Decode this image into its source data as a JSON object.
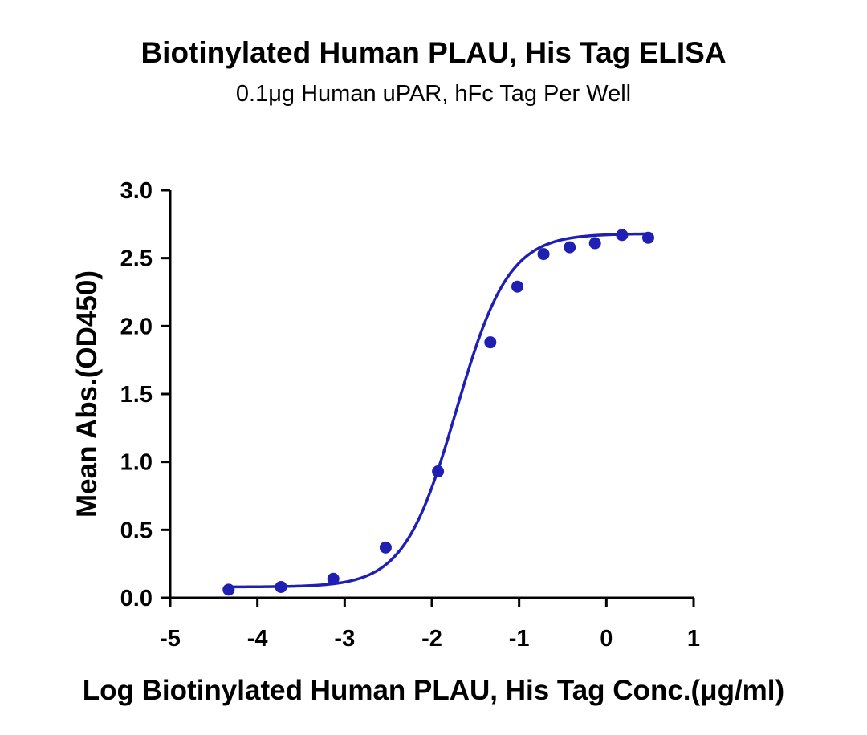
{
  "chart_data": {
    "type": "scatter",
    "title": "Biotinylated Human PLAU, His Tag ELISA",
    "subtitle": "0.1μg Human uPAR, hFc Tag Per Well",
    "xlabel": "Log Biotinylated Human PLAU, His Tag Conc.(μg/ml)",
    "ylabel": "Mean Abs.(OD450)",
    "xlim": [
      -5,
      1
    ],
    "ylim": [
      0,
      3
    ],
    "x_ticks": [
      -5,
      -4,
      -3,
      -2,
      -1,
      0,
      1
    ],
    "x_tick_labels": [
      "-5",
      "-4",
      "-3",
      "-2",
      "-1",
      "0",
      "1"
    ],
    "y_ticks": [
      0,
      0.5,
      1,
      1.5,
      2,
      2.5,
      3
    ],
    "y_tick_labels": [
      "0.0",
      "0.5",
      "1.0",
      "1.5",
      "2.0",
      "2.5",
      "3.0"
    ],
    "grid": false,
    "legend": "none",
    "series": [
      {
        "color": "#1f1fb4",
        "x": [
          -4.33,
          -3.73,
          -3.13,
          -2.53,
          -1.93,
          -1.33,
          -1.02,
          -0.72,
          -0.42,
          -0.13,
          0.18,
          0.48
        ],
        "y": [
          0.06,
          0.08,
          0.14,
          0.37,
          0.93,
          1.88,
          2.29,
          2.53,
          2.58,
          2.61,
          2.67,
          2.65
        ],
        "fit": {
          "model": "4PL",
          "bottom": 0.08,
          "top": 2.68,
          "log_ec50": -1.72,
          "hill_slope": 1.45
        }
      }
    ]
  }
}
